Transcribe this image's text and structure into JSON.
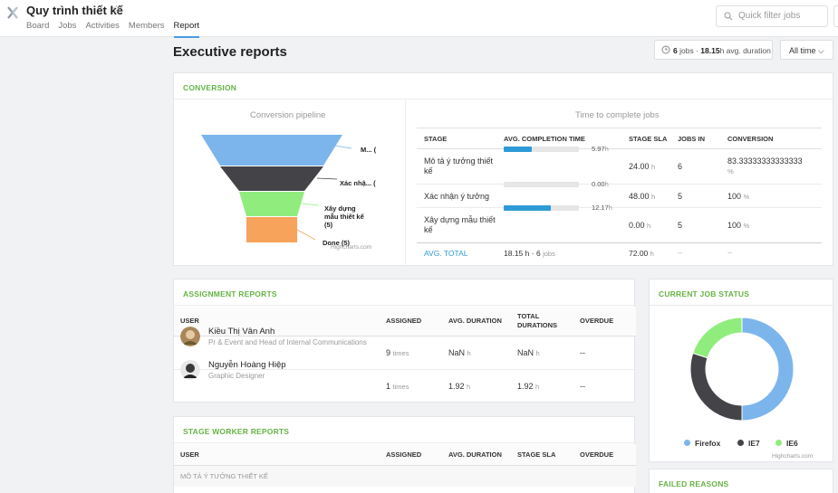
{
  "app": {
    "project_title": "Quy trình thiết kế",
    "nav": [
      {
        "label": "Board"
      },
      {
        "label": "Jobs"
      },
      {
        "label": "Activities"
      },
      {
        "label": "Members"
      },
      {
        "label": "Report",
        "active": true
      }
    ],
    "search_placeholder": "Quick filter jobs"
  },
  "header": {
    "title": "Executive reports",
    "summary_jobs": "6",
    "summary_jobs_text": "jobs ·",
    "summary_duration": "18.15",
    "summary_duration_text": "h avg. duration",
    "time_filter": "All time ⌵"
  },
  "conversion": {
    "heading": "CONVERSION",
    "pipeline_title": "Conversion pipeline",
    "funnel": [
      {
        "label": "M... (",
        "color": "#7cb5ec"
      },
      {
        "label": "Xác nhậ... (",
        "color": "#434348"
      },
      {
        "label": "Xây dựng mẫu thiết kế (5)",
        "color": "#90ed7d"
      },
      {
        "label": "Done (5)",
        "color": "#f7a35c"
      }
    ],
    "credit": "Highcharts.com",
    "time_title": "Time to complete jobs",
    "columns": [
      "STAGE",
      "AVG. COMPLETION TIME",
      "STAGE SLA",
      "JOBS IN",
      "CONVERSION"
    ],
    "rows": [
      {
        "stage": "Mô tả ý tưởng thiết kế",
        "avg": "5.97",
        "fill": 0.37,
        "sla": "24.00",
        "jobs": "6",
        "conv": "83.33333333333333"
      },
      {
        "stage": "Xác nhận ý tưởng",
        "avg": "0.00",
        "fill": 0.0,
        "sla": "48.00",
        "jobs": "5",
        "conv": "100"
      },
      {
        "stage": "Xây dựng mẫu thiết kế",
        "avg": "12.17",
        "fill": 0.63,
        "sla": "0.00",
        "jobs": "5",
        "conv": "100"
      }
    ],
    "total": {
      "label": "AVG. TOTAL",
      "avg": "18.15",
      "jobs": "6",
      "jobs_unit": "jobs",
      "sla": "72.00",
      "dash1": "--",
      "dash2": "--"
    },
    "unit_h": "h",
    "unit_pct": "%"
  },
  "assignment": {
    "heading": "ASSIGNMENT REPORTS",
    "columns": [
      "USER",
      "ASSIGNED",
      "AVG. DURATION",
      "TOTAL DURATIONS",
      "OVERDUE"
    ],
    "rows": [
      {
        "name": "Kiều Thị Vân Anh",
        "role": "Pr & Event and Head of Internal Communications",
        "assigned": "9",
        "times": "times",
        "avg": "NaN",
        "total": "NaN",
        "overdue": "--"
      },
      {
        "name": "Nguyễn Hoàng Hiệp",
        "role": "Graphic Designer",
        "assigned": "1",
        "times": "times",
        "avg": "1.92",
        "total": "1.92",
        "overdue": "--"
      }
    ]
  },
  "stage_worker": {
    "heading": "STAGE WORKER REPORTS",
    "columns": [
      "USER",
      "ASSIGNED",
      "AVG. DURATION",
      "STAGE SLA",
      "OVERDUE"
    ],
    "group": "MÔ TẢ Ý TƯỞNG THIẾT KẾ"
  },
  "job_status": {
    "heading": "CURRENT JOB STATUS",
    "legend": [
      {
        "label": "Firefox",
        "color": "#7cb5ec"
      },
      {
        "label": "IE7",
        "color": "#434348"
      },
      {
        "label": "IE6",
        "color": "#90ed7d"
      }
    ],
    "credit": "Highcharts.com"
  },
  "chart_data": {
    "type": "pie",
    "categories": [
      "Firefox",
      "IE7",
      "IE6"
    ],
    "values": [
      50,
      30,
      20
    ],
    "title": "",
    "legend": "bottom"
  },
  "failed": {
    "heading": "FAILED REASONS"
  }
}
